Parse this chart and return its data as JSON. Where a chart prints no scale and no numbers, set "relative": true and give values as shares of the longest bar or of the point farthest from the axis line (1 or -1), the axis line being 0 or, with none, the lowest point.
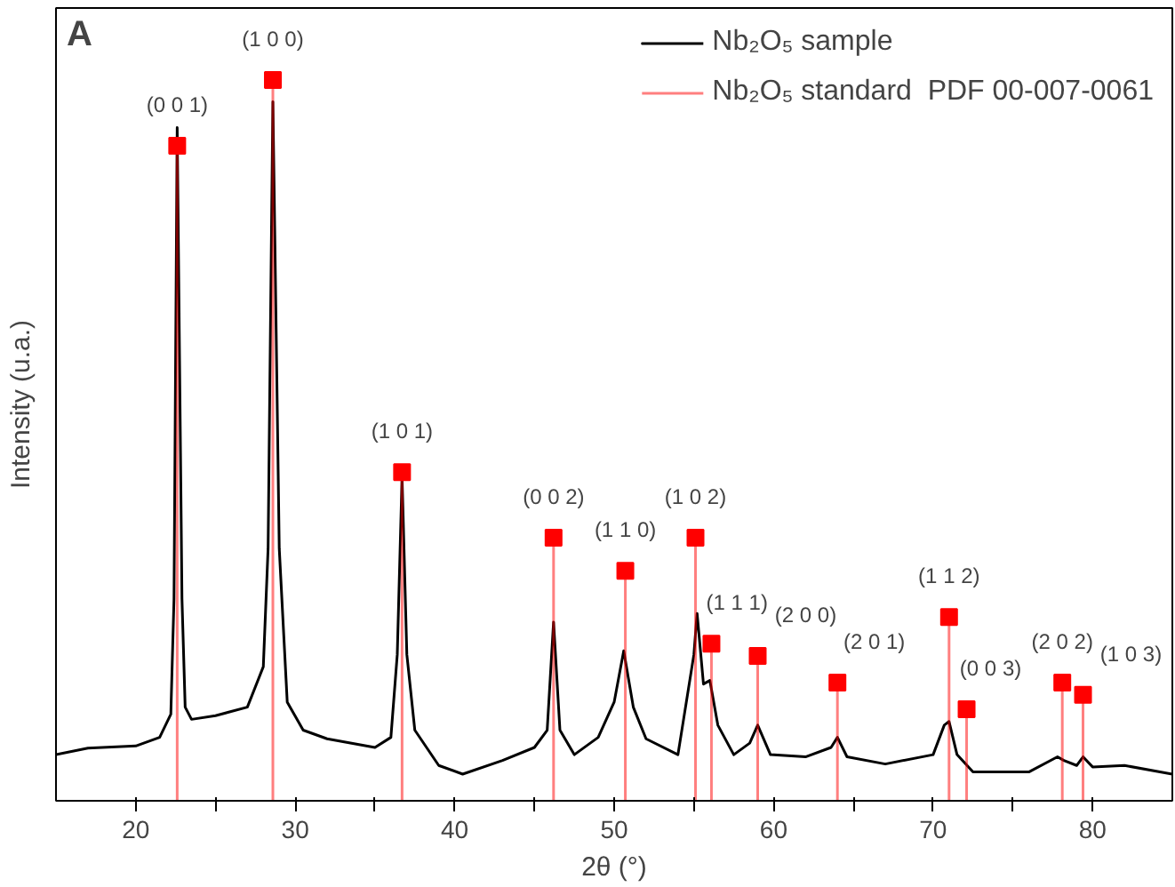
{
  "chart_data": {
    "type": "line",
    "relative": true,
    "xlabel": "2θ (°)",
    "ylabel": "Intensity (u.a.)",
    "xlim": [
      15,
      85
    ],
    "xticks": [
      20,
      {
        "value": 25,
        "label": null
      },
      30,
      {
        "value": 35,
        "label": null
      },
      40,
      {
        "value": 45,
        "label": null
      },
      50,
      {
        "value": 55,
        "label": null
      },
      60,
      {
        "value": 65,
        "label": null
      },
      70,
      {
        "value": 75,
        "label": null
      },
      80
    ],
    "tick_labels": "x",
    "grid": false,
    "legend": "top right",
    "series": [
      {
        "name": "Nb₂O₅ sample",
        "color": "#000000",
        "x": [
          15,
          17,
          20,
          21.5,
          22.2,
          22.4,
          22.6,
          22.9,
          23.1,
          23.5,
          25,
          27,
          28,
          28.3,
          28.6,
          29.0,
          29.5,
          30.5,
          32,
          35,
          36.0,
          36.4,
          36.7,
          37.0,
          37.5,
          39,
          40.5,
          43,
          45,
          45.8,
          46.2,
          46.6,
          47.5,
          49,
          50.0,
          50.6,
          51.2,
          52,
          54,
          55.0,
          55.2,
          55.6,
          56.0,
          56.5,
          57.5,
          58.5,
          59.0,
          59.8,
          62,
          63.6,
          64.0,
          64.6,
          67,
          70,
          70.7,
          71.0,
          71.5,
          72.5,
          76,
          77.8,
          78.2,
          79,
          79.4,
          80,
          82,
          85
        ],
        "values": [
          0.064,
          0.073,
          0.076,
          0.088,
          0.12,
          0.28,
          0.934,
          0.28,
          0.13,
          0.113,
          0.118,
          0.13,
          0.186,
          0.35,
          0.97,
          0.35,
          0.137,
          0.098,
          0.086,
          0.074,
          0.088,
          0.203,
          0.449,
          0.203,
          0.098,
          0.049,
          0.037,
          0.056,
          0.074,
          0.098,
          0.248,
          0.098,
          0.064,
          0.088,
          0.137,
          0.208,
          0.13,
          0.086,
          0.064,
          0.203,
          0.26,
          0.162,
          0.167,
          0.105,
          0.064,
          0.08,
          0.105,
          0.064,
          0.061,
          0.074,
          0.088,
          0.061,
          0.051,
          0.064,
          0.105,
          0.11,
          0.064,
          0.04,
          0.04,
          0.061,
          0.056,
          0.049,
          0.061,
          0.047,
          0.049,
          0.037
        ]
      },
      {
        "name": "Nb₂O₅ standard  PDF 00-007-0061",
        "type": "lollipop",
        "marker": "square",
        "color": "#ff0000",
        "x": [
          22.6,
          28.6,
          36.7,
          46.2,
          50.7,
          55.1,
          56.1,
          59.0,
          64.0,
          71.0,
          72.1,
          78.1,
          79.4
        ],
        "values": [
          0.909,
          1.0,
          0.456,
          0.365,
          0.319,
          0.365,
          0.218,
          0.201,
          0.164,
          0.255,
          0.127,
          0.164,
          0.147
        ]
      }
    ],
    "annotations": [
      "A",
      {
        "text": "(0 0 1)",
        "x": 22.6,
        "y": 0.909
      },
      {
        "text": "(1 0 0)",
        "x": 28.6,
        "y": 1.0
      },
      {
        "text": "(1 0 1)",
        "x": 36.7,
        "y": 0.456
      },
      {
        "text": "(0 0 2)",
        "x": 46.2,
        "y": 0.365
      },
      {
        "text": "(1 1 0)",
        "x": 50.7,
        "y": 0.319
      },
      {
        "text": "(1 0 2)",
        "x": 55.1,
        "y": 0.365
      },
      {
        "text": "(1 1 1)",
        "x": 56.1,
        "y": 0.218
      },
      {
        "text": "(2 0 0)",
        "x": 59.0,
        "y": 0.201
      },
      {
        "text": "(2 0 1)",
        "x": 64.0,
        "y": 0.164
      },
      {
        "text": "(1 1 2)",
        "x": 71.0,
        "y": 0.255
      },
      {
        "text": "(0 0 3)",
        "x": 72.1,
        "y": 0.127
      },
      {
        "text": "(2 0 2)",
        "x": 78.1,
        "y": 0.164
      },
      {
        "text": "(1 0 3)",
        "x": 79.4,
        "y": 0.147
      }
    ]
  }
}
